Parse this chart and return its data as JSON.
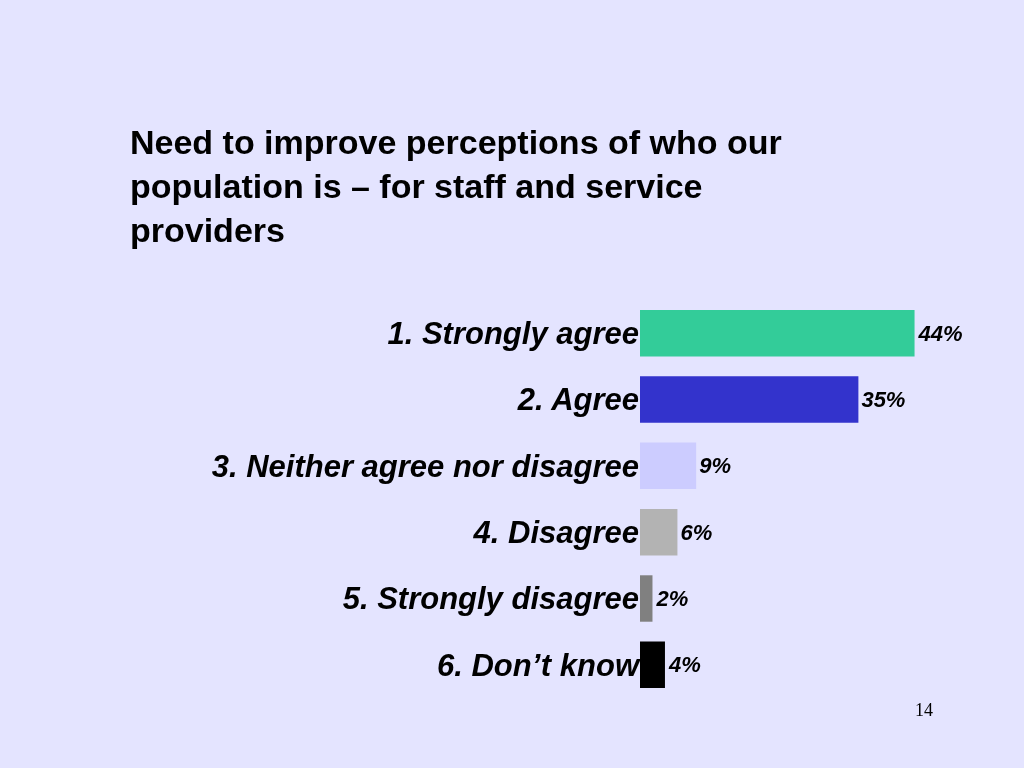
{
  "chart_data": {
    "type": "bar",
    "orientation": "horizontal",
    "title": "Need to improve perceptions of who our population is – for staff and service providers",
    "categories": [
      "1. Strongly agree",
      "2. Agree",
      "3. Neither agree nor disagree",
      "4. Disagree",
      "5. Strongly disagree",
      "6. Don’t know"
    ],
    "values": [
      44,
      35,
      9,
      6,
      2,
      4
    ],
    "colors": [
      "#33cc99",
      "#3333cc",
      "#ccccff",
      "#b3b3b3",
      "#808080",
      "#000000"
    ],
    "value_labels": [
      "44%",
      "35%",
      "9%",
      "6%",
      "2%",
      "4%"
    ],
    "tick_labels": "y",
    "grid": false,
    "annotations": [
      "14"
    ]
  }
}
